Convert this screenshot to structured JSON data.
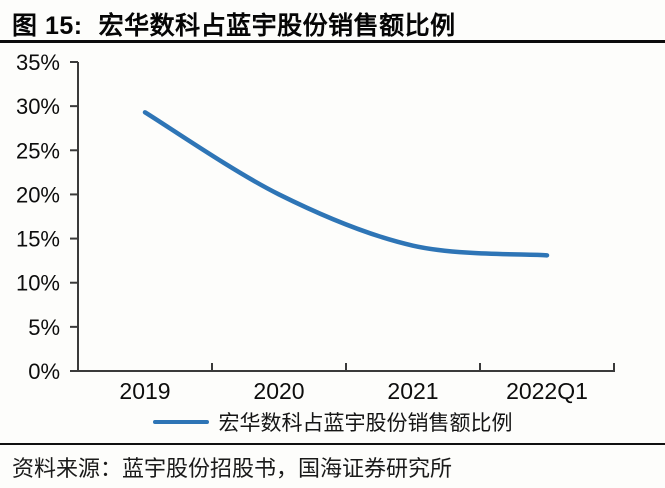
{
  "figure": {
    "label": "图 15:",
    "title": "宏华数科占蓝宇股份销售额比例"
  },
  "chart_data": {
    "type": "line",
    "categories": [
      "2019",
      "2020",
      "2021",
      "2022Q1"
    ],
    "series": [
      {
        "name": "宏华数科占蓝宇股份销售额比例",
        "color": "#2E75B6",
        "values": [
          29.3,
          20.0,
          14.2,
          13.1
        ]
      }
    ],
    "xlabel": "",
    "ylabel": "",
    "ylim": [
      0,
      35
    ],
    "yticks": [
      0,
      5,
      10,
      15,
      20,
      25,
      30,
      35
    ],
    "ytick_suffix": "%",
    "grid": false,
    "legend_position": "bottom",
    "smooth": true,
    "axis_color": "#3a3a3a"
  },
  "source": {
    "text": "资料来源：蓝宇股份招股书，国海证券研究所"
  }
}
